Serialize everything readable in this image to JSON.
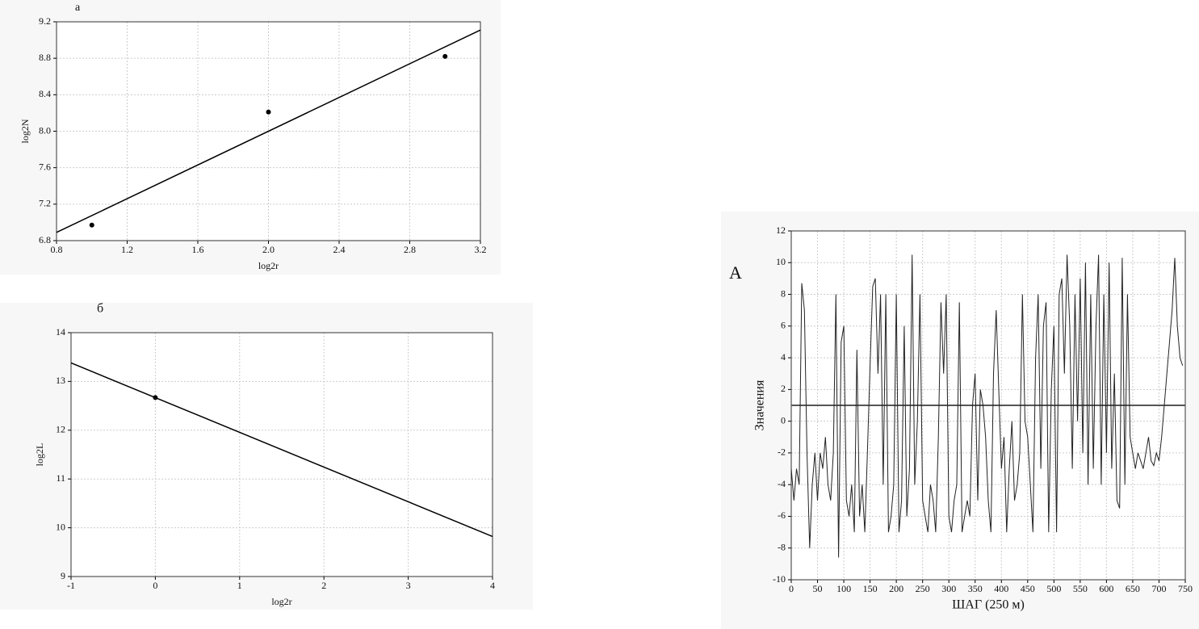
{
  "chart_data": [
    {
      "type": "scatter",
      "title": "а",
      "x_label": "log2r",
      "y_label": "log2N",
      "x": [
        1.0,
        2.0,
        3.0
      ],
      "values": [
        6.97,
        8.21,
        8.82
      ],
      "color": "#000000",
      "fit_line": {
        "x": [
          0.8,
          3.2
        ],
        "y": [
          6.89,
          9.11
        ]
      },
      "xlim": [
        0.8,
        3.2
      ],
      "ylim": [
        6.8,
        9.2
      ],
      "xticks": [
        0.8,
        1.2,
        1.6,
        {
          "value": 2,
          "label": "2.0"
        },
        2.4,
        2.8,
        3.2
      ],
      "yticks": [
        6.8,
        7.2,
        7.6,
        {
          "value": 8,
          "label": "8.0"
        },
        8.4,
        8.8,
        9.2
      ],
      "grid": true
    },
    {
      "type": "scatter",
      "title": "б",
      "x_label": "log2r",
      "y_label": "log2L",
      "x": [
        0
      ],
      "values": [
        12.67
      ],
      "color": "#000000",
      "fit_line": {
        "x": [
          -1,
          4
        ],
        "y": [
          13.38,
          9.82
        ]
      },
      "xlim": [
        -1,
        4
      ],
      "ylim": [
        9,
        14
      ],
      "xticks": [
        -1,
        0,
        1,
        2,
        3,
        4
      ],
      "yticks": [
        9,
        10,
        11,
        12,
        13,
        14
      ],
      "grid": true
    },
    {
      "type": "line",
      "title": "A",
      "x_label": "ШАГ (250 м)",
      "y_label": "Значения",
      "color": "#222222",
      "x": [
        0,
        5,
        10,
        15,
        20,
        25,
        30,
        35,
        40,
        45,
        50,
        55,
        60,
        65,
        70,
        75,
        80,
        85,
        90,
        95,
        100,
        105,
        110,
        115,
        120,
        125,
        130,
        135,
        140,
        145,
        150,
        155,
        160,
        165,
        170,
        175,
        180,
        185,
        190,
        195,
        200,
        205,
        210,
        215,
        220,
        225,
        230,
        235,
        240,
        245,
        250,
        255,
        260,
        265,
        270,
        275,
        280,
        285,
        290,
        295,
        300,
        305,
        310,
        315,
        320,
        325,
        330,
        335,
        340,
        345,
        350,
        355,
        360,
        365,
        370,
        375,
        380,
        385,
        390,
        395,
        400,
        405,
        410,
        415,
        420,
        425,
        430,
        435,
        440,
        445,
        450,
        455,
        460,
        465,
        470,
        475,
        480,
        485,
        490,
        495,
        500,
        505,
        510,
        515,
        520,
        525,
        530,
        535,
        540,
        545,
        550,
        555,
        560,
        565,
        570,
        575,
        580,
        585,
        590,
        595,
        600,
        605,
        610,
        615,
        620,
        625,
        630,
        635,
        640,
        645,
        650,
        655,
        660,
        665,
        670,
        675,
        680,
        685,
        690,
        695,
        700,
        705,
        710,
        715,
        720,
        725,
        730,
        735,
        740,
        745
      ],
      "values": [
        -3,
        -5,
        -3,
        -4,
        8.7,
        7,
        -2,
        -8,
        -4,
        -2,
        -5,
        -2,
        -3,
        -1,
        -4,
        -5,
        -2,
        8,
        -8.6,
        5,
        6,
        -5,
        -6,
        -4,
        -7,
        4.5,
        -6,
        -4,
        -7,
        -2,
        3.5,
        8.5,
        9,
        3,
        8,
        -4,
        8,
        -7,
        -6,
        -4,
        8,
        -7,
        -5,
        6,
        -6,
        -3,
        10.5,
        -4,
        0,
        8,
        -5,
        -6,
        -7,
        -4,
        -5,
        -7,
        -1,
        7.5,
        3,
        8,
        -6,
        -7,
        -5,
        -4,
        7.5,
        -7,
        -6,
        -5,
        -6,
        1,
        3,
        -5,
        2,
        1,
        -1,
        -5,
        -7,
        3,
        7,
        2,
        -3,
        -1,
        -7,
        -3,
        0,
        -5,
        -4,
        -2,
        8,
        0,
        -1,
        -4,
        -7,
        4,
        8,
        -3,
        6,
        7.5,
        -7,
        2,
        6,
        -7,
        8,
        9,
        3,
        10.5,
        6,
        -3,
        8,
        0,
        9,
        -2,
        10,
        -4,
        8,
        -3,
        6,
        10.5,
        -4,
        8,
        -2,
        10,
        -3,
        3,
        -5,
        -5.5,
        10.3,
        -4,
        8,
        -1,
        -2,
        -3,
        -2,
        -2.5,
        -3,
        -2,
        -1,
        -2.5,
        -2.8,
        -2,
        -2.5,
        -1,
        1,
        3,
        5,
        7,
        10.3,
        6,
        4,
        3.5
      ],
      "hline": 1,
      "xlim": [
        0,
        750
      ],
      "ylim": [
        -10,
        12
      ],
      "xticks": [
        0,
        50,
        100,
        150,
        200,
        250,
        300,
        350,
        400,
        450,
        500,
        550,
        600,
        650,
        700,
        750
      ],
      "yticks": [
        -10,
        -8,
        -6,
        -4,
        -2,
        0,
        2,
        4,
        6,
        8,
        10,
        12
      ],
      "grid": true
    }
  ]
}
